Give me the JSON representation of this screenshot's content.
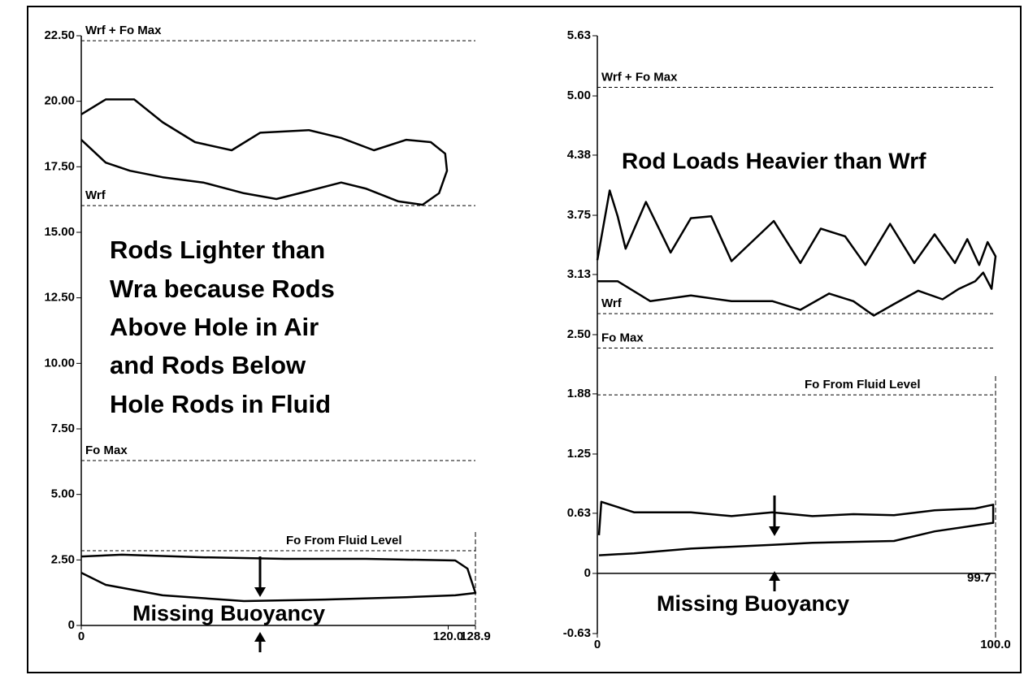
{
  "chart_data": [
    {
      "type": "line",
      "xlim": [
        0,
        128.9
      ],
      "ylim": [
        0,
        22.5
      ],
      "xticks": [
        0,
        {
          "value": 120,
          "label": "120.0"
        },
        128.9
      ],
      "yticks": [
        0,
        {
          "value": 2.5,
          "label": "2.50"
        },
        {
          "value": 5,
          "label": "5.00"
        },
        {
          "value": 7.5,
          "label": "7.50"
        },
        {
          "value": 10,
          "label": "10.00"
        },
        {
          "value": 12.5,
          "label": "12.50"
        },
        {
          "value": 15,
          "label": "15.00"
        },
        {
          "value": 17.5,
          "label": "17.50"
        },
        {
          "value": 20,
          "label": "20.00"
        },
        {
          "value": 22.5,
          "label": "22.50"
        }
      ],
      "reference_lines": [
        {
          "label": "Wrf + Fo Max",
          "value": 22.31
        },
        {
          "label": "Wrf",
          "value": 16.02
        },
        {
          "label": "Fo Max",
          "value": 6.29
        },
        {
          "label": "Fo From Fluid Level",
          "value": 2.85
        }
      ],
      "annotations": [
        "Rods Lighter than",
        "Wra because Rods",
        "Above Hole in Air",
        "and Rods Below",
        "Hole Rods in Fluid",
        "Missing Buoyancy"
      ],
      "series": [
        {
          "color": "#000000",
          "x": [
            0,
            8,
            17.3,
            26.6,
            37.2,
            49.2,
            58.5,
            74.4,
            85,
            95.7,
            106.3,
            114.3,
            119,
            119.6,
            117,
            111.6,
            103.7,
            93,
            85,
            74.4,
            63.8,
            53.2,
            39.9,
            26.6,
            15.9,
            8,
            0
          ],
          "values": [
            19.5,
            20.07,
            20.07,
            19.2,
            18.44,
            18.13,
            18.8,
            18.9,
            18.6,
            18.13,
            18.53,
            18.44,
            18.0,
            17.35,
            16.49,
            16.05,
            16.18,
            16.67,
            16.9,
            16.58,
            16.27,
            16.49,
            16.9,
            17.1,
            17.35,
            17.66,
            18.53
          ]
        },
        {
          "color": "#000000",
          "x": [
            0,
            13.3,
            39.9,
            66.5,
            93,
            122.3,
            126.3,
            128.9,
            122.3,
            106.3,
            79.7,
            53.2,
            26.6,
            8,
            0
          ],
          "values": [
            2.63,
            2.7,
            2.6,
            2.54,
            2.54,
            2.48,
            2.17,
            1.24,
            1.15,
            1.08,
            0.99,
            0.93,
            1.15,
            1.55,
            2.01
          ]
        }
      ]
    },
    {
      "type": "line",
      "xlim": [
        0,
        100
      ],
      "ylim": [
        -0.63,
        5.63
      ],
      "xticks": [
        0,
        {
          "value": 100,
          "label": "100.0"
        }
      ],
      "yticks": [
        -0.63,
        0,
        0.63,
        1.25,
        1.88,
        {
          "value": 2.5,
          "label": "2.50"
        },
        3.13,
        3.75,
        4.38,
        {
          "value": 5,
          "label": "5.00"
        },
        5.63
      ],
      "reference_lines": [
        {
          "label": "Wrf + Fo Max",
          "value": 5.09
        },
        {
          "label": "Wrf",
          "value": 2.72
        },
        {
          "label": "Fo Max",
          "value": 2.36
        },
        {
          "label": "Fo From Fluid Level",
          "value": 1.87
        }
      ],
      "annotations": [
        "Rod Loads Heavier than Wrf",
        "Missing Buoyancy",
        "99.7"
      ],
      "series": [
        {
          "color": "#000000",
          "x": [
            0,
            3.1,
            5.1,
            7.1,
            12.2,
            18.4,
            23.5,
            28.6,
            33.7,
            44.3,
            51,
            56.1,
            62.2,
            67.3,
            73.5,
            79.6,
            84.7,
            89.8,
            92.9,
            95.9,
            98,
            100,
            99,
            96.9,
            94.9,
            90.8,
            86.7,
            80.6,
            74.5,
            69.4,
            64.3,
            58.2,
            51,
            44,
            33.7,
            23.5,
            13.3,
            5.1,
            0
          ],
          "values": [
            3.28,
            4.01,
            3.74,
            3.4,
            3.89,
            3.36,
            3.72,
            3.74,
            3.27,
            3.69,
            3.25,
            3.61,
            3.53,
            3.23,
            3.66,
            3.25,
            3.55,
            3.25,
            3.5,
            3.23,
            3.47,
            3.32,
            2.98,
            3.15,
            3.06,
            2.98,
            2.87,
            2.96,
            2.82,
            2.7,
            2.85,
            2.93,
            2.76,
            2.85,
            2.85,
            2.91,
            2.85,
            3.06,
            3.06
          ]
        },
        {
          "color": "#000000",
          "x": [
            0.4,
            1,
            9.2,
            23.5,
            33.7,
            43.9,
            54,
            64.3,
            74.5,
            84.7,
            94.9,
            99.4,
            99.4,
            84.7,
            74.5,
            54,
            44,
            23.5,
            9.2,
            0.4
          ],
          "values": [
            0.4,
            0.75,
            0.64,
            0.64,
            0.6,
            0.64,
            0.6,
            0.62,
            0.61,
            0.66,
            0.68,
            0.72,
            0.53,
            0.44,
            0.34,
            0.32,
            0.3,
            0.26,
            0.21,
            0.19
          ]
        }
      ]
    }
  ]
}
